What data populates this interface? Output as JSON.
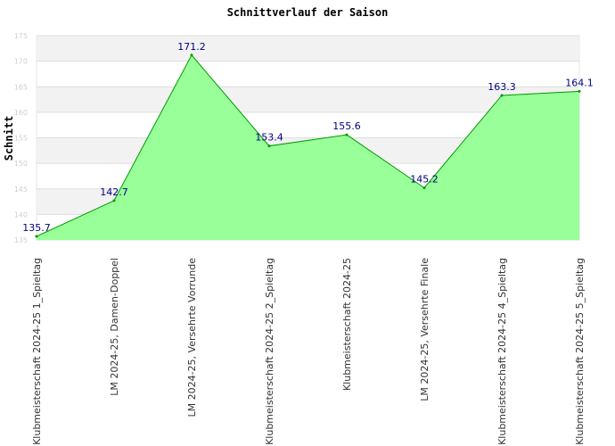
{
  "chart_data": {
    "type": "area",
    "title": "Schnittverlauf der Saison",
    "xlabel": "",
    "ylabel": "Schnitt",
    "ylim": [
      135,
      175
    ],
    "yticks": [
      135,
      140,
      145,
      150,
      155,
      160,
      165,
      170,
      175
    ],
    "grid": true,
    "legend": "none",
    "categories": [
      "Klubmeisterschaft 2024-25   1_Spieltag",
      "LM 2024-25, Damen-Doppel",
      "LM 2024-25, Versehrte Vorrunde",
      "Klubmeisterschaft 2024-25   2_Spieltag",
      "Klubmeisterschaft 2024-25",
      "LM 2024-25, Versehrte Finale",
      "Klubmeisterschaft 2024-25   4_Spieltag",
      "Klubmeisterschaft 2024-25   5_Spieltag"
    ],
    "values": [
      135.7,
      142.7,
      171.2,
      153.4,
      155.6,
      145.2,
      163.3,
      164.1
    ],
    "data_labels": [
      "135.7",
      "142.7",
      "171.2",
      "153.4",
      "155.6",
      "145.2",
      "163.3",
      "164.1"
    ],
    "colors": {
      "fill": "#99ff99",
      "line": "#009900",
      "label": "#000080",
      "band": "#f2f2f2",
      "grid": "#dddddd"
    }
  }
}
